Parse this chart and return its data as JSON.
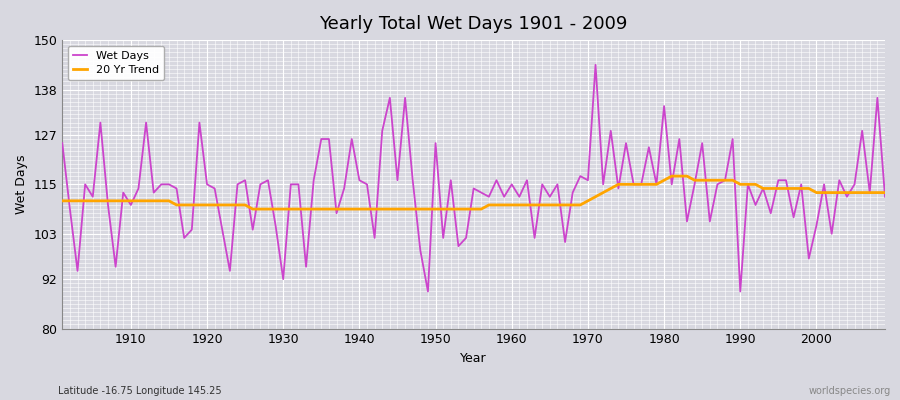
{
  "title": "Yearly Total Wet Days 1901 - 2009",
  "xlabel": "Year",
  "ylabel": "Wet Days",
  "ylim": [
    80,
    150
  ],
  "yticks": [
    80,
    92,
    103,
    115,
    127,
    138,
    150
  ],
  "xlim": [
    1901,
    2009
  ],
  "xticks": [
    1910,
    1920,
    1930,
    1940,
    1950,
    1960,
    1970,
    1980,
    1990,
    2000
  ],
  "wet_days_color": "#CC44CC",
  "trend_color": "#FFA500",
  "bg_color": "#D8D8E0",
  "grid_color": "#FFFFFF",
  "subtitle": "Latitude -16.75 Longitude 145.25",
  "watermark": "worldspecies.org",
  "years": [
    1901,
    1902,
    1903,
    1904,
    1905,
    1906,
    1907,
    1908,
    1909,
    1910,
    1911,
    1912,
    1913,
    1914,
    1915,
    1916,
    1917,
    1918,
    1919,
    1920,
    1921,
    1922,
    1923,
    1924,
    1925,
    1926,
    1927,
    1928,
    1929,
    1930,
    1931,
    1932,
    1933,
    1934,
    1935,
    1936,
    1937,
    1938,
    1939,
    1940,
    1941,
    1942,
    1943,
    1944,
    1945,
    1946,
    1947,
    1948,
    1949,
    1950,
    1951,
    1952,
    1953,
    1954,
    1955,
    1956,
    1957,
    1958,
    1959,
    1960,
    1961,
    1962,
    1963,
    1964,
    1965,
    1966,
    1967,
    1968,
    1969,
    1970,
    1971,
    1972,
    1973,
    1974,
    1975,
    1976,
    1977,
    1978,
    1979,
    1980,
    1981,
    1982,
    1983,
    1984,
    1985,
    1986,
    1987,
    1988,
    1989,
    1990,
    1991,
    1992,
    1993,
    1994,
    1995,
    1996,
    1997,
    1998,
    1999,
    2000,
    2001,
    2002,
    2003,
    2004,
    2005,
    2006,
    2007,
    2008,
    2009
  ],
  "wet_days": [
    125,
    109,
    94,
    115,
    112,
    130,
    110,
    95,
    113,
    110,
    114,
    130,
    113,
    115,
    115,
    114,
    102,
    104,
    130,
    115,
    114,
    104,
    94,
    115,
    116,
    104,
    115,
    116,
    105,
    92,
    115,
    115,
    95,
    116,
    126,
    126,
    108,
    114,
    126,
    116,
    115,
    102,
    128,
    136,
    116,
    136,
    116,
    99,
    89,
    125,
    102,
    116,
    100,
    102,
    114,
    113,
    112,
    116,
    112,
    115,
    112,
    116,
    102,
    115,
    112,
    115,
    101,
    113,
    117,
    116,
    144,
    115,
    128,
    114,
    125,
    115,
    115,
    124,
    115,
    134,
    115,
    126,
    106,
    115,
    125,
    106,
    115,
    116,
    126,
    89,
    115,
    110,
    114,
    108,
    116,
    116,
    107,
    115,
    97,
    105,
    115,
    103,
    116,
    112,
    115,
    128,
    113,
    136,
    112
  ],
  "trend": [
    111,
    111,
    111,
    111,
    111,
    111,
    111,
    111,
    111,
    111,
    111,
    111,
    111,
    111,
    111,
    110,
    110,
    110,
    110,
    110,
    110,
    110,
    110,
    110,
    110,
    109,
    109,
    109,
    109,
    109,
    109,
    109,
    109,
    109,
    109,
    109,
    109,
    109,
    109,
    109,
    109,
    109,
    109,
    109,
    109,
    109,
    109,
    109,
    109,
    109,
    109,
    109,
    109,
    109,
    109,
    109,
    110,
    110,
    110,
    110,
    110,
    110,
    110,
    110,
    110,
    110,
    110,
    110,
    110,
    111,
    112,
    113,
    114,
    115,
    115,
    115,
    115,
    115,
    115,
    116,
    117,
    117,
    117,
    116,
    116,
    116,
    116,
    116,
    116,
    115,
    115,
    115,
    114,
    114,
    114,
    114,
    114,
    114,
    114,
    113,
    113,
    113,
    113,
    113,
    113,
    113,
    113,
    113,
    113
  ]
}
